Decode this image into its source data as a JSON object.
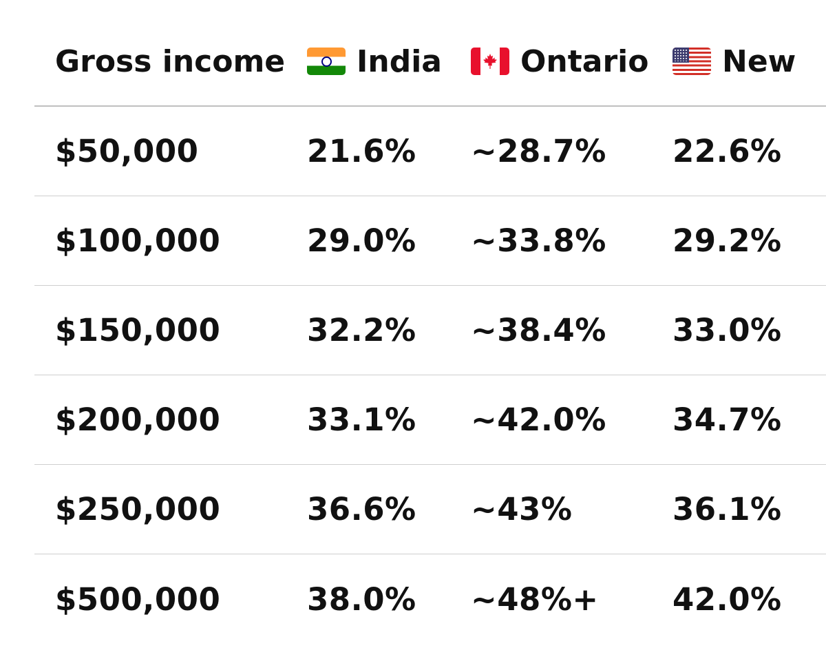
{
  "table": {
    "columns": [
      {
        "label": "Gross income",
        "flag": ""
      },
      {
        "label": "India",
        "flag": "india-flag-icon"
      },
      {
        "label": "Ontario",
        "flag": "canada-flag-icon"
      },
      {
        "label": "New",
        "flag": "usa-flag-icon"
      }
    ],
    "rows": [
      [
        "$50,000",
        "21.6%",
        "~28.7%",
        "22.6%"
      ],
      [
        "$100,000",
        "29.0%",
        "~33.8%",
        "29.2%"
      ],
      [
        "$150,000",
        "32.2%",
        "~38.4%",
        "33.0%"
      ],
      [
        "$200,000",
        "33.1%",
        "~42.0%",
        "34.7%"
      ],
      [
        "$250,000",
        "36.6%",
        "~43%",
        "36.1%"
      ],
      [
        "$500,000",
        "38.0%",
        "~48%+",
        "42.0%"
      ]
    ]
  },
  "colors": {
    "text": "#111111",
    "divider": "#cfcfcf",
    "header_divider": "#bfbfbf"
  }
}
